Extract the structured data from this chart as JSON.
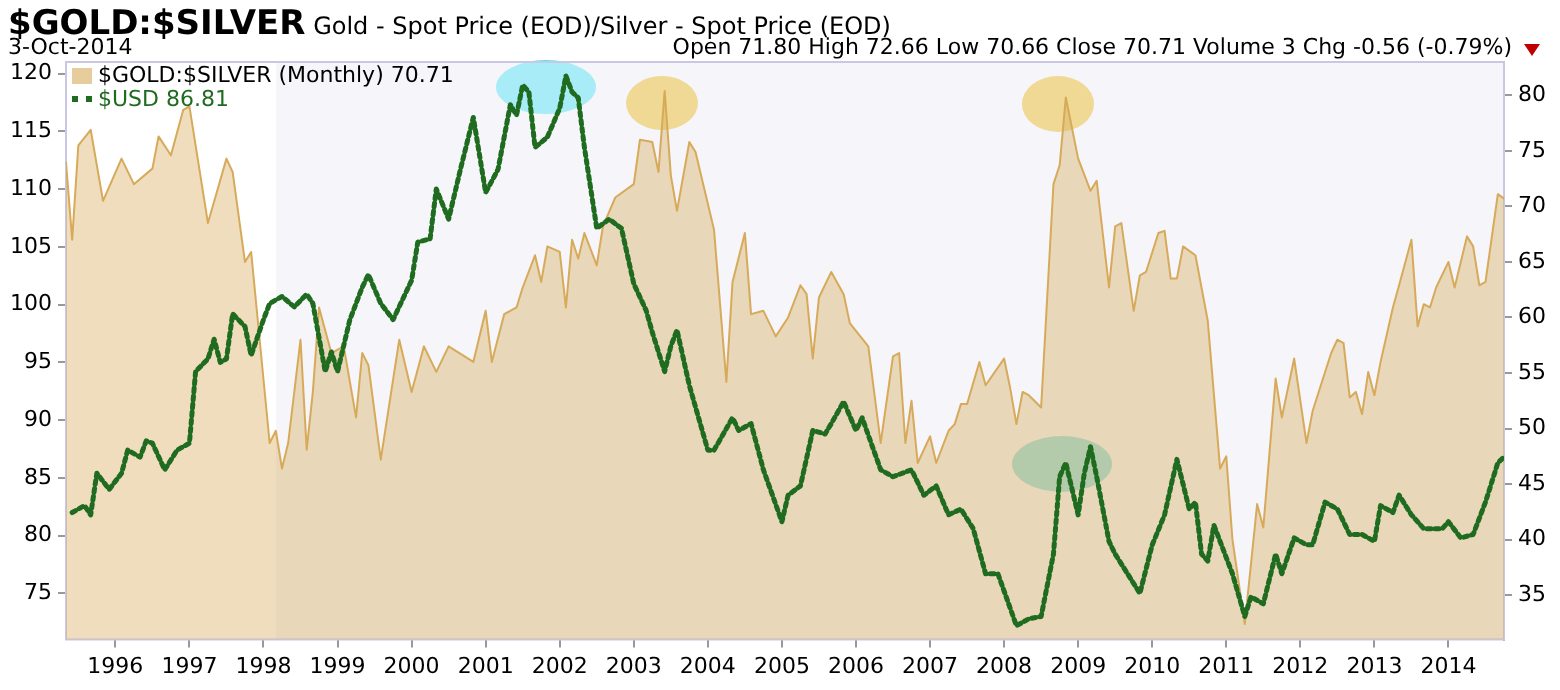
{
  "chart_data": {
    "type": "line",
    "title": "$GOLD:$SILVER",
    "subtitle": "Gold - Spot Price (EOD)/Silver - Spot Price (EOD)",
    "annotations": [
      "3-Oct-2014",
      "Open 71.80  High 72.66  Low 70.66  Close 70.71  Volume 3  Chg -0.56 (-0.79%)"
    ],
    "series": [
      {
        "name": "$GOLD:$SILVER (Monthly) 70.71",
        "type": "area",
        "axis": "y2",
        "color": "#d7aa5a",
        "x": [
          "1995-05",
          "1995-06",
          "1995-07",
          "1995-09",
          "1995-11",
          "1996-02",
          "1996-04",
          "1996-07",
          "1996-08",
          "1996-10",
          "1996-12",
          "1997-01",
          "1997-04",
          "1997-07",
          "1997-08",
          "1997-10",
          "1997-11",
          "1998-02",
          "1998-03",
          "1998-04",
          "1998-05",
          "1998-07",
          "1998-08",
          "1998-09",
          "1998-10",
          "1998-12",
          "1999-02",
          "1999-04",
          "1999-05",
          "1999-06",
          "1999-08",
          "1999-11",
          "2000-01",
          "2000-03",
          "2000-05",
          "2000-07",
          "2000-11",
          "2001-01",
          "2001-02",
          "2001-04",
          "2001-06",
          "2001-07",
          "2001-09",
          "2001-10",
          "2001-11",
          "2002-01",
          "2002-02",
          "2002-03",
          "2002-04",
          "2002-05",
          "2002-07",
          "2002-08",
          "2002-10",
          "2003-01",
          "2003-02",
          "2003-04",
          "2003-05",
          "2003-06",
          "2003-07",
          "2003-08",
          "2003-10",
          "2003-11",
          "2004-02",
          "2004-04",
          "2004-05",
          "2004-07",
          "2004-08",
          "2004-10",
          "2004-12",
          "2005-02",
          "2005-04",
          "2005-05",
          "2005-06",
          "2005-07",
          "2005-09",
          "2005-11",
          "2005-12",
          "2006-03",
          "2006-05",
          "2006-07",
          "2006-08",
          "2006-09",
          "2006-10",
          "2006-11",
          "2007-01",
          "2007-02",
          "2007-04",
          "2007-05",
          "2007-06",
          "2007-07",
          "2007-09",
          "2007-10",
          "2008-01",
          "2008-02",
          "2008-03",
          "2008-04",
          "2008-05",
          "2008-07",
          "2008-09",
          "2008-10",
          "2008-11",
          "2009-01",
          "2009-03",
          "2009-04",
          "2009-06",
          "2009-07",
          "2009-08",
          "2009-10",
          "2009-11",
          "2009-12",
          "2010-02",
          "2010-03",
          "2010-04",
          "2010-05",
          "2010-06",
          "2010-08",
          "2010-10",
          "2010-12",
          "2011-01",
          "2011-02",
          "2011-04",
          "2011-06",
          "2011-07",
          "2011-09",
          "2011-10",
          "2011-12",
          "2012-02",
          "2012-03",
          "2012-06",
          "2012-07",
          "2012-08",
          "2012-09",
          "2012-10",
          "2012-11",
          "2012-12",
          "2013-01",
          "2013-02",
          "2013-04",
          "2013-05",
          "2013-07",
          "2013-08",
          "2013-09",
          "2013-10",
          "2013-11",
          "2014-01",
          "2014-02",
          "2014-04",
          "2014-05",
          "2014-06",
          "2014-07",
          "2014-09",
          "2014-10"
        ],
        "values": [
          74.0,
          67.0,
          75.5,
          76.9,
          70.5,
          74.3,
          72.0,
          73.4,
          76.3,
          74.6,
          78.7,
          79.0,
          68.5,
          74.3,
          73.1,
          65.0,
          65.9,
          48.7,
          49.8,
          46.4,
          48.7,
          58.0,
          48.1,
          53.3,
          60.9,
          56.8,
          57.4,
          51.0,
          56.8,
          55.7,
          47.2,
          58.0,
          53.3,
          57.4,
          55.1,
          57.4,
          56.0,
          60.6,
          56.0,
          60.3,
          60.9,
          62.7,
          65.6,
          63.2,
          66.4,
          65.9,
          60.9,
          67.0,
          65.3,
          67.6,
          64.7,
          68.2,
          70.8,
          72.0,
          76.0,
          75.8,
          73.1,
          80.4,
          72.8,
          69.6,
          75.8,
          74.9,
          67.9,
          54.2,
          63.2,
          67.6,
          60.3,
          60.6,
          58.3,
          60.0,
          62.9,
          62.1,
          56.3,
          61.8,
          64.1,
          62.1,
          59.5,
          57.4,
          48.7,
          56.5,
          56.8,
          48.7,
          52.5,
          46.9,
          49.3,
          46.9,
          49.8,
          50.4,
          52.2,
          52.2,
          56.0,
          53.9,
          56.3,
          53.6,
          50.4,
          53.3,
          53.0,
          51.9,
          72.0,
          73.7,
          79.8,
          74.3,
          71.4,
          72.3,
          62.7,
          68.2,
          68.5,
          60.6,
          63.8,
          64.1,
          67.6,
          67.8,
          63.5,
          63.5,
          66.4,
          65.6,
          59.7,
          46.4,
          47.5,
          40.0,
          32.4,
          43.2,
          41.1,
          54.5,
          51.0,
          56.3,
          48.7,
          51.6,
          56.8,
          58.0,
          57.7,
          52.8,
          53.3,
          51.3,
          55.1,
          53.0,
          56.0,
          60.9,
          62.9,
          67.0,
          59.2,
          61.2,
          60.9,
          62.7,
          65.0,
          62.7,
          67.3,
          66.4,
          62.9,
          63.2,
          71.1,
          70.7
        ]
      },
      {
        "name": "$USD 86.81",
        "type": "line",
        "axis": "y",
        "color": "#1f6b1f",
        "line_style": "dotted",
        "x": [
          "1995-06",
          "1995-08",
          "1995-09",
          "1995-10",
          "1995-12",
          "1996-02",
          "1996-03",
          "1996-05",
          "1996-06",
          "1996-07",
          "1996-09",
          "1996-11",
          "1997-01",
          "1997-02",
          "1997-04",
          "1997-05",
          "1997-06",
          "1997-07",
          "1997-08",
          "1997-10",
          "1997-11",
          "1998-01",
          "1998-02",
          "1998-04",
          "1998-06",
          "1998-08",
          "1998-09",
          "1998-11",
          "1998-12",
          "1999-01",
          "1999-03",
          "1999-05",
          "1999-06",
          "1999-08",
          "1999-10",
          "2000-01",
          "2000-02",
          "2000-04",
          "2000-05",
          "2000-07",
          "2000-09",
          "2000-11",
          "2001-01",
          "2001-03",
          "2001-05",
          "2001-06",
          "2001-07",
          "2001-08",
          "2001-09",
          "2001-11",
          "2002-01",
          "2002-02",
          "2002-03",
          "2002-04",
          "2002-05",
          "2002-07",
          "2002-09",
          "2002-11",
          "2003-01",
          "2003-03",
          "2003-04",
          "2003-06",
          "2003-07",
          "2003-08",
          "2003-10",
          "2004-01",
          "2004-02",
          "2004-05",
          "2004-06",
          "2004-08",
          "2004-10",
          "2005-01",
          "2005-02",
          "2005-04",
          "2005-06",
          "2005-08",
          "2005-09",
          "2005-11",
          "2006-01",
          "2006-02",
          "2006-05",
          "2006-07",
          "2006-10",
          "2006-12",
          "2007-02",
          "2007-04",
          "2007-06",
          "2007-08",
          "2007-10",
          "2007-12",
          "2008-03",
          "2008-05",
          "2008-07",
          "2008-09",
          "2008-10",
          "2008-11",
          "2009-01",
          "2009-02",
          "2009-03",
          "2009-04",
          "2009-06",
          "2009-07",
          "2009-09",
          "2009-11",
          "2010-01",
          "2010-03",
          "2010-05",
          "2010-07",
          "2010-08",
          "2010-09",
          "2010-10",
          "2010-11",
          "2011-02",
          "2011-04",
          "2011-05",
          "2011-07",
          "2011-09",
          "2011-10",
          "2011-12",
          "2012-02",
          "2012-03",
          "2012-05",
          "2012-07",
          "2012-09",
          "2012-11",
          "2013-01",
          "2013-02",
          "2013-04",
          "2013-05",
          "2013-07",
          "2013-09",
          "2013-12",
          "2014-01",
          "2014-03",
          "2014-05",
          "2014-07",
          "2014-09",
          "2014-10"
        ],
        "values": [
          82.0,
          82.6,
          81.8,
          85.4,
          84.0,
          85.4,
          87.4,
          86.8,
          88.2,
          88.0,
          85.7,
          87.4,
          88.0,
          94.2,
          95.3,
          97.0,
          95.0,
          95.3,
          99.2,
          98.1,
          95.6,
          98.7,
          100.1,
          100.7,
          99.8,
          100.9,
          100.1,
          94.2,
          95.9,
          94.2,
          98.7,
          101.5,
          102.6,
          100.1,
          98.7,
          102.1,
          105.4,
          105.7,
          110.0,
          107.4,
          111.9,
          116.2,
          109.7,
          111.7,
          117.3,
          116.4,
          119.0,
          118.4,
          113.6,
          114.5,
          117.0,
          119.8,
          118.4,
          117.9,
          113.6,
          106.6,
          107.4,
          106.6,
          101.8,
          99.5,
          97.6,
          94.2,
          96.4,
          97.8,
          93.0,
          87.4,
          87.4,
          90.2,
          89.1,
          89.7,
          85.7,
          81.2,
          83.5,
          84.3,
          89.1,
          88.8,
          89.7,
          91.6,
          89.1,
          90.2,
          85.7,
          85.1,
          85.7,
          83.5,
          84.3,
          81.8,
          82.3,
          80.6,
          76.7,
          76.7,
          72.2,
          72.8,
          73.0,
          78.4,
          85.1,
          86.3,
          81.8,
          85.4,
          87.7,
          85.1,
          79.5,
          78.4,
          76.7,
          75.0,
          79.2,
          81.8,
          86.6,
          82.3,
          82.9,
          78.4,
          77.8,
          80.9,
          76.7,
          73.0,
          74.7,
          74.1,
          78.4,
          76.7,
          79.8,
          79.2,
          79.2,
          82.9,
          82.3,
          80.1,
          80.1,
          79.5,
          82.6,
          82.0,
          83.5,
          81.8,
          80.6,
          80.6,
          81.2,
          79.8,
          80.1,
          82.9,
          86.3,
          86.8
        ]
      }
    ],
    "marker": "none",
    "legend": "top left",
    "xlim": [
      "1995-05",
      "2014-10"
    ],
    "xticks": [
      "1996",
      "1997",
      "1998",
      "1999",
      "2000",
      "2001",
      "2002",
      "2003",
      "2004",
      "2005",
      "2006",
      "2007",
      "2008",
      "2009",
      "2010",
      "2011",
      "2012",
      "2013",
      "2014"
    ],
    "ylim": [
      71,
      121
    ],
    "yticks": [
      75,
      80,
      85,
      90,
      95,
      100,
      105,
      110,
      115,
      120
    ],
    "y2lim": [
      31,
      83
    ],
    "y2ticks": [
      35,
      40,
      45,
      50,
      55,
      60,
      65,
      70,
      75,
      80
    ],
    "bands": [
      {
        "axis": "x",
        "from": "1998-03",
        "to": "2014-10",
        "color": "#eeeef6"
      }
    ]
  }
}
